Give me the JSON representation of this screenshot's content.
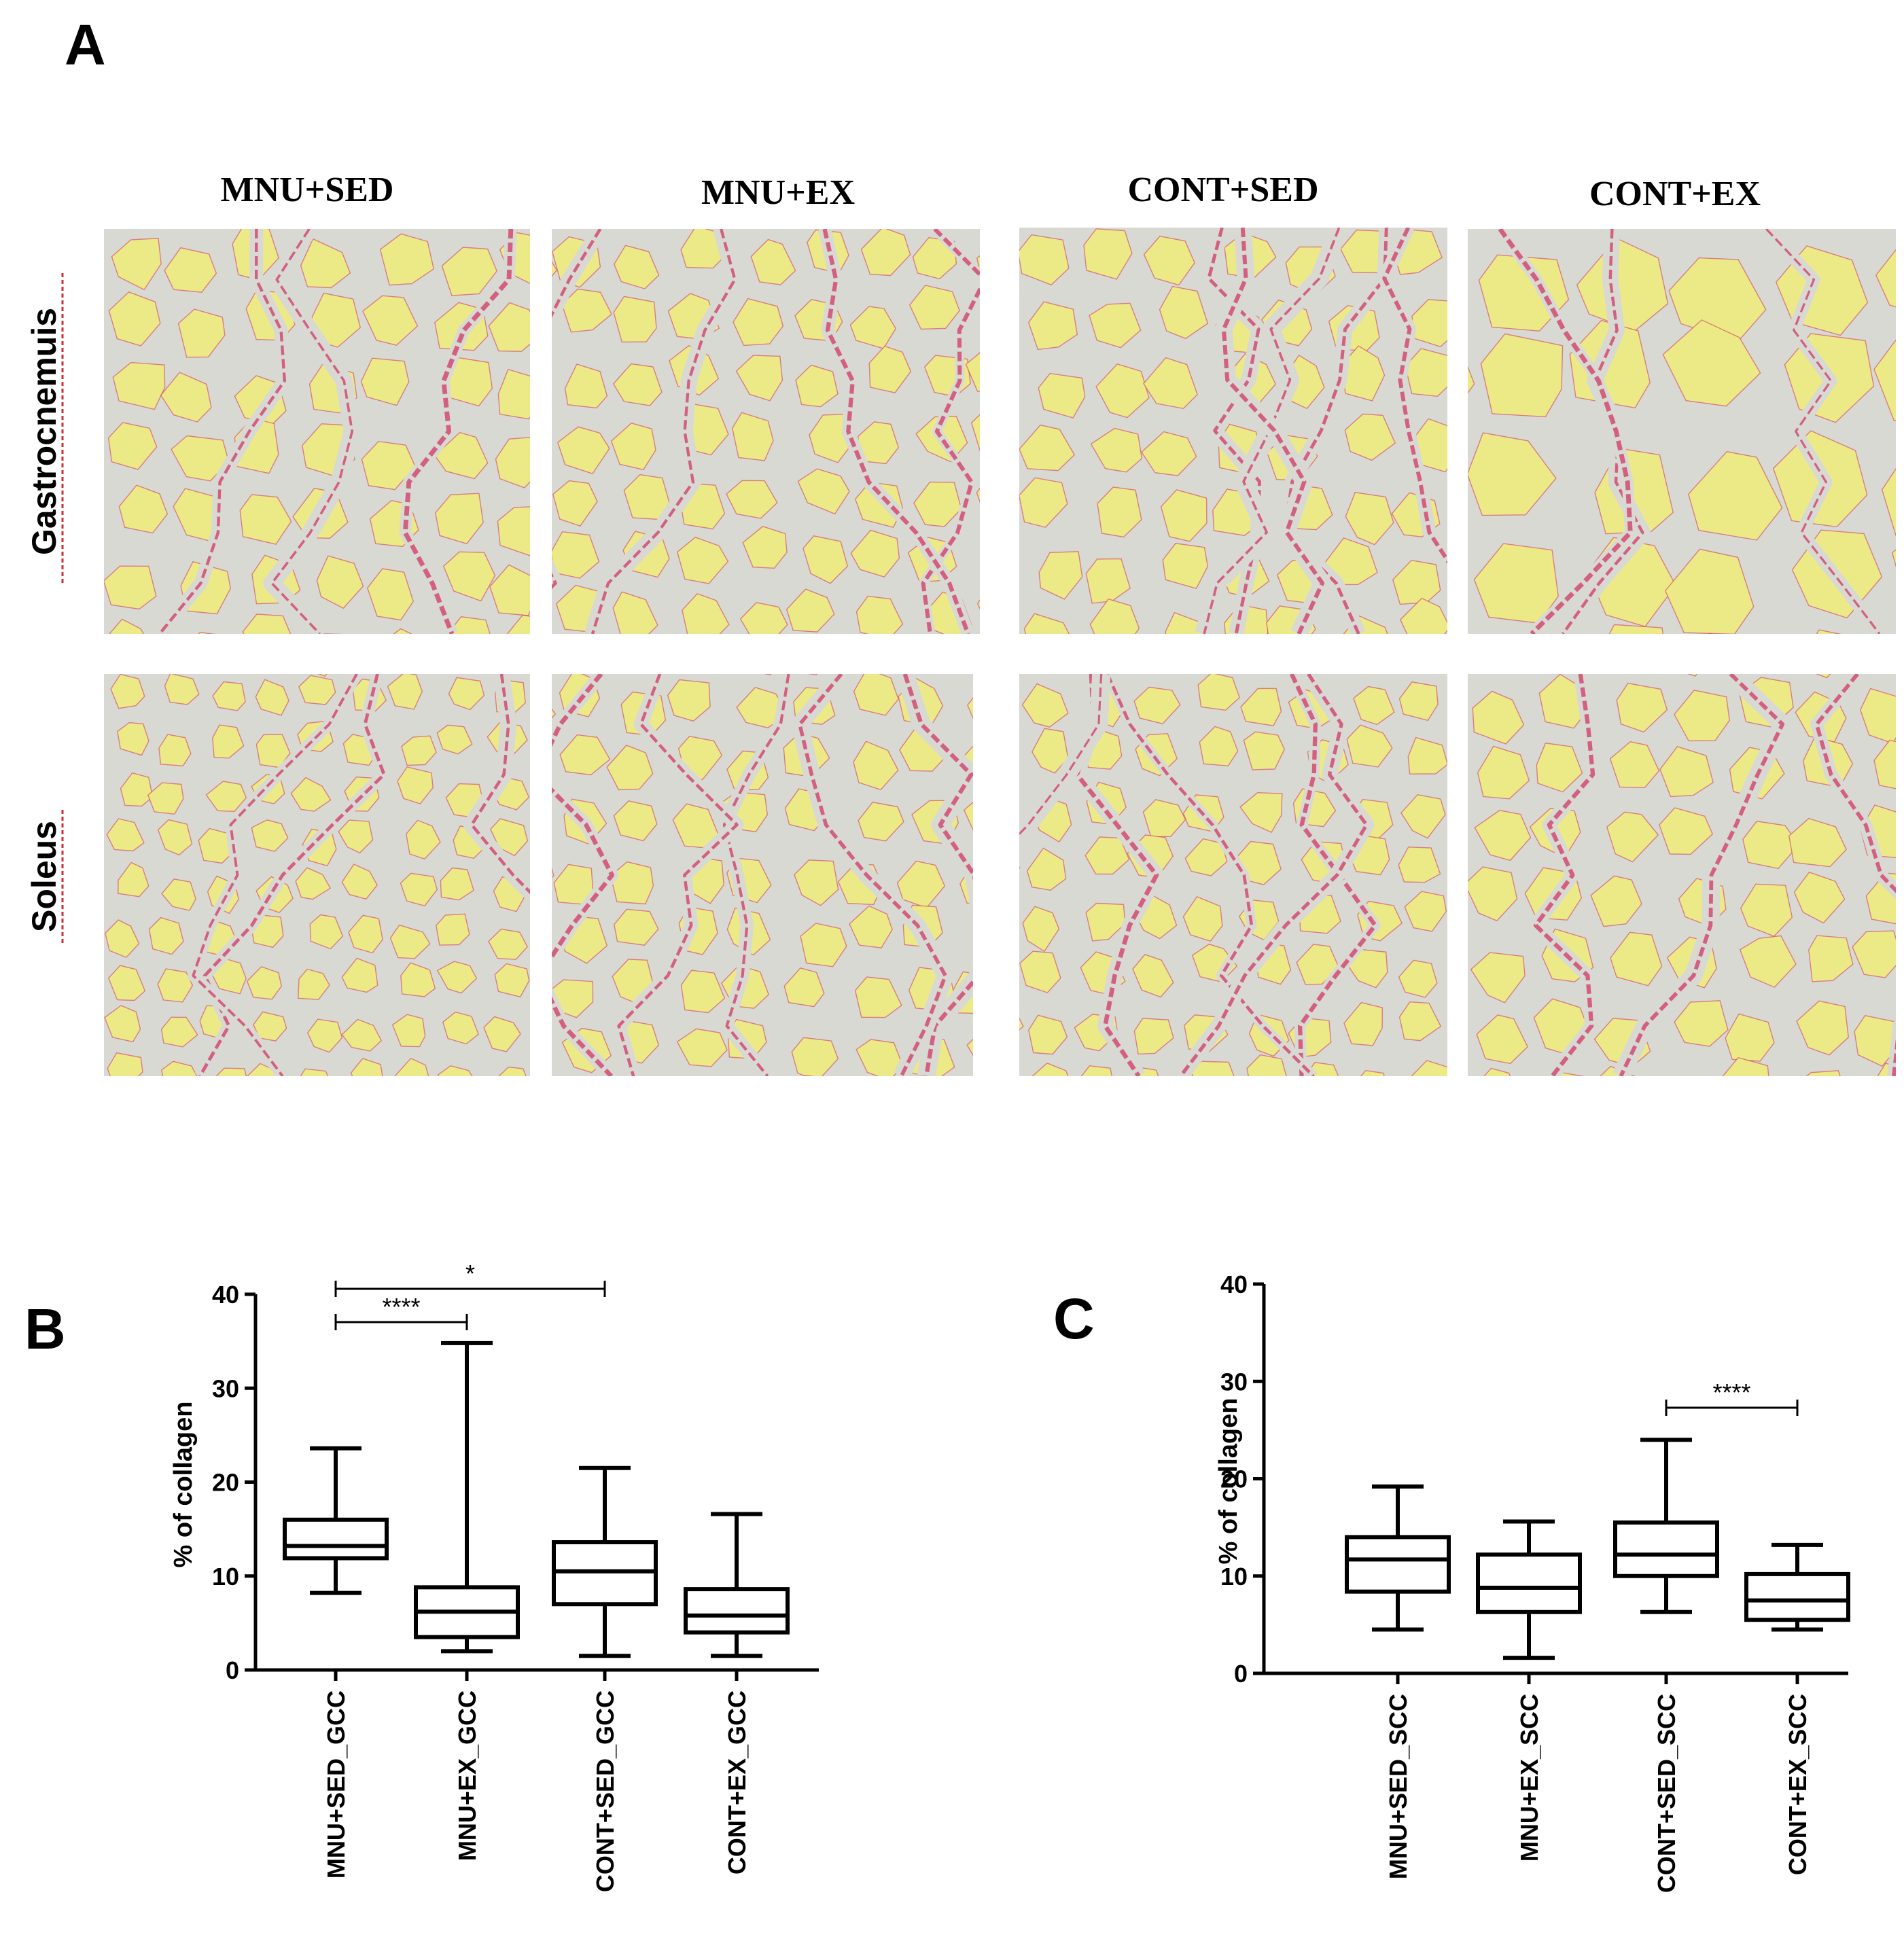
{
  "panel_a": {
    "letter": "A",
    "columns": [
      "MNU+SED",
      "MNU+EX",
      "CONT+SED",
      "CONT+EX"
    ],
    "rows": [
      "Gastrocnemuis",
      "Soleus"
    ],
    "colors": {
      "fiber": "#ecea86",
      "interstitium": "#d9d9d3",
      "collagen": "#d02c5e",
      "fiber_edge": "#f2f0b5"
    }
  },
  "chart_data": [
    {
      "type": "box",
      "panel": "B",
      "title": "",
      "xlabel": "",
      "ylabel": "% of collagen",
      "ylim": [
        0,
        40
      ],
      "yticks": [
        0,
        10,
        20,
        30,
        40
      ],
      "categories": [
        "MNU+SED_GCC",
        "MNU+EX_GCC",
        "CONT+SED_GCC",
        "CONT+EX_GCC"
      ],
      "boxes": [
        {
          "min": 8.2,
          "q1": 11.9,
          "median": 13.2,
          "q3": 16.0,
          "max": 23.6
        },
        {
          "min": 2.0,
          "q1": 3.5,
          "median": 6.2,
          "q3": 8.8,
          "max": 34.8
        },
        {
          "min": 1.5,
          "q1": 7.0,
          "median": 10.5,
          "q3": 13.6,
          "max": 21.5
        },
        {
          "min": 1.5,
          "q1": 4.0,
          "median": 5.8,
          "q3": 8.6,
          "max": 16.6
        }
      ],
      "significance": [
        {
          "from": 0,
          "to": 2,
          "label": "*"
        },
        {
          "from": 0,
          "to": 1,
          "label": "****"
        }
      ]
    },
    {
      "type": "box",
      "panel": "C",
      "title": "",
      "xlabel": "",
      "ylabel": "% of collagen",
      "ylim": [
        0,
        40
      ],
      "yticks": [
        0,
        10,
        20,
        30,
        40
      ],
      "categories": [
        "MNU+SED_SCC",
        "MNU+EX_SCC",
        "CONT+SED_SCC",
        "CONT+EX_SCC"
      ],
      "boxes": [
        {
          "min": 4.5,
          "q1": 8.4,
          "median": 11.7,
          "q3": 14.0,
          "max": 19.2
        },
        {
          "min": 1.6,
          "q1": 6.3,
          "median": 8.8,
          "q3": 12.2,
          "max": 15.6
        },
        {
          "min": 6.3,
          "q1": 10.0,
          "median": 12.2,
          "q3": 15.5,
          "max": 24.0
        },
        {
          "min": 4.5,
          "q1": 5.5,
          "median": 7.5,
          "q3": 10.2,
          "max": 13.2
        }
      ],
      "significance": [
        {
          "from": 2,
          "to": 3,
          "label": "****"
        }
      ]
    }
  ]
}
